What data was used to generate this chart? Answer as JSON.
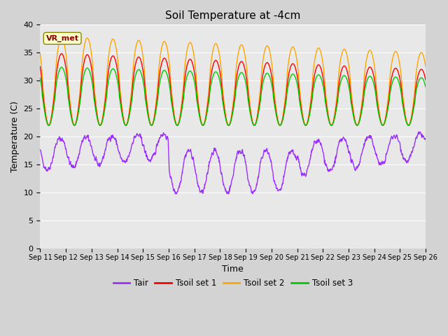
{
  "title": "Soil Temperature at -4cm",
  "xlabel": "Time",
  "ylabel": "Temperature (C)",
  "ylim": [
    0,
    40
  ],
  "yticks": [
    0,
    5,
    10,
    15,
    20,
    25,
    30,
    35,
    40
  ],
  "x_labels": [
    "Sep 11",
    "Sep 12",
    "Sep 13",
    "Sep 14",
    "Sep 15",
    "Sep 16",
    "Sep 17",
    "Sep 18",
    "Sep 19",
    "Sep 20",
    "Sep 21",
    "Sep 22",
    "Sep 23",
    "Sep 24",
    "Sep 25",
    "Sep 26"
  ],
  "colors": {
    "Tair": "#9b30ff",
    "Tsoil_set1": "#ff0000",
    "Tsoil_set2": "#ffa500",
    "Tsoil_set3": "#00cc00"
  },
  "legend_labels": [
    "Tair",
    "Tsoil set 1",
    "Tsoil set 2",
    "Tsoil set 3"
  ],
  "annotation_text": "VR_met",
  "annotation_color": "#8b0000",
  "fig_bg_color": "#d3d3d3",
  "plot_bg_color": "#e8e8e8",
  "title_fontsize": 11,
  "axis_fontsize": 9,
  "tick_fontsize": 8,
  "n_points": 1440,
  "days": 15
}
